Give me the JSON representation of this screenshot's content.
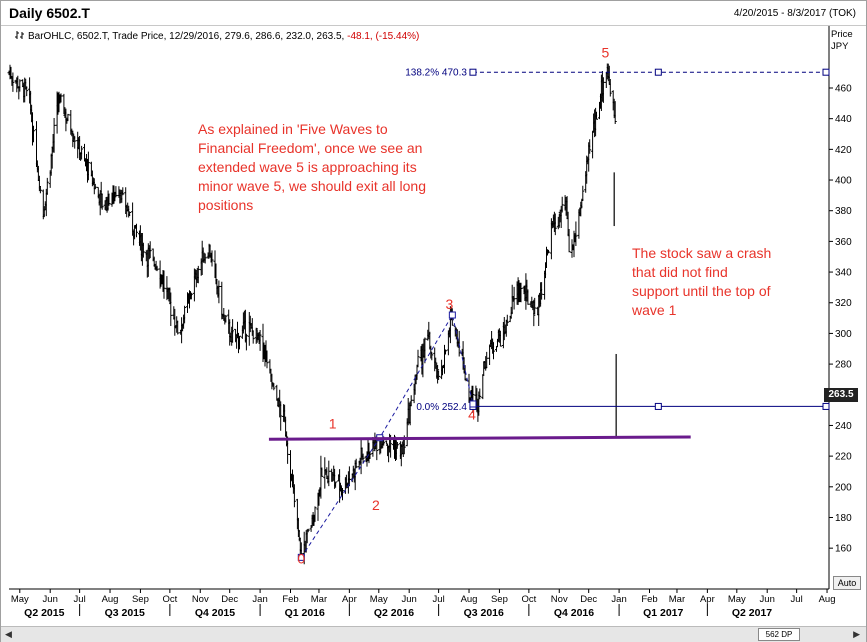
{
  "header": {
    "title": "Daily 6502.T",
    "range": "4/20/2015 - 8/3/2017 (TOK)"
  },
  "info": {
    "text": "BarOHLC, 6502.T, Trade Price, 12/29/2016, 279.6, 286.6, 232.0, 263.5, ",
    "change": "-48.1, (-15.44%)"
  },
  "price_axis": {
    "title": "Price",
    "currency": "JPY",
    "last_price": "263.5"
  },
  "controls": {
    "auto": "Auto",
    "dp": "562 DP"
  },
  "colors": {
    "bars": "#000000",
    "fib": "#00007f",
    "annotation": "#e8332a",
    "support": "#6a1b8c",
    "wave_path": "#1a1aa0"
  },
  "chart_data": {
    "type": "bar",
    "subtype": "OHLC",
    "symbol": "6502.T",
    "ylim": [
      140,
      480
    ],
    "y_ticks": [
      160,
      180,
      200,
      220,
      240,
      260,
      280,
      300,
      320,
      340,
      360,
      380,
      400,
      420,
      440,
      460
    ],
    "month_ticks": [
      "May",
      "Jun",
      "Jul",
      "Aug",
      "Sep",
      "Oct",
      "Nov",
      "Dec",
      "Jan",
      "Feb",
      "Mar",
      "Apr",
      "May",
      "Jun",
      "Jul",
      "Aug",
      "Sep",
      "Oct",
      "Nov",
      "Dec",
      "Jan",
      "Feb",
      "Mar",
      "Apr",
      "May",
      "Jun",
      "Jul",
      "Aug"
    ],
    "quarter_ticks": [
      "Q2 2015",
      "Q3 2015",
      "Q4 2015",
      "Q1 2016",
      "Q2 2016",
      "Q3 2016",
      "Q4 2016",
      "Q1 2017",
      "Q2 2017"
    ],
    "price_path": [
      [
        "2015-04-20",
        470
      ],
      [
        "2015-05-10",
        455
      ],
      [
        "2015-05-25",
        378
      ],
      [
        "2015-06-10",
        453
      ],
      [
        "2015-07-01",
        420
      ],
      [
        "2015-07-25",
        382
      ],
      [
        "2015-08-10",
        395
      ],
      [
        "2015-09-01",
        358
      ],
      [
        "2015-09-20",
        342
      ],
      [
        "2015-10-10",
        300
      ],
      [
        "2015-10-31",
        345
      ],
      [
        "2015-11-10",
        355
      ],
      [
        "2015-11-25",
        308
      ],
      [
        "2015-12-05",
        295
      ],
      [
        "2015-12-20",
        305
      ],
      [
        "2016-01-05",
        290
      ],
      [
        "2016-01-15",
        262
      ],
      [
        "2016-01-25",
        245
      ],
      [
        "2016-02-05",
        190
      ],
      [
        "2016-02-12",
        155
      ],
      [
        "2016-02-25",
        182
      ],
      [
        "2016-03-05",
        210
      ],
      [
        "2016-03-25",
        200
      ],
      [
        "2016-04-15",
        220
      ],
      [
        "2016-05-05",
        232
      ],
      [
        "2016-05-25",
        222
      ],
      [
        "2016-06-10",
        280
      ],
      [
        "2016-06-20",
        296
      ],
      [
        "2016-07-01",
        268
      ],
      [
        "2016-07-15",
        310
      ],
      [
        "2016-07-25",
        285
      ],
      [
        "2016-08-01",
        258
      ],
      [
        "2016-08-10",
        256
      ],
      [
        "2016-08-20",
        290
      ],
      [
        "2016-09-05",
        300
      ],
      [
        "2016-09-20",
        330
      ],
      [
        "2016-10-10",
        315
      ],
      [
        "2016-10-25",
        370
      ],
      [
        "2016-11-08",
        382
      ],
      [
        "2016-11-12",
        345
      ],
      [
        "2016-11-25",
        392
      ],
      [
        "2016-12-05",
        430
      ],
      [
        "2016-12-15",
        462
      ],
      [
        "2016-12-20",
        473
      ],
      [
        "2016-12-25",
        450
      ],
      [
        "2016-12-28",
        440
      ]
    ],
    "last_bar": {
      "date": "12/29/2016",
      "open": 279.6,
      "high": 286.6,
      "low": 232.0,
      "close": 263.5
    },
    "crash_bars": [
      {
        "date": "2016-12-27",
        "high": 405,
        "low": 370
      },
      {
        "date": "2016-12-29",
        "high": 286.6,
        "low": 232
      }
    ],
    "wave_labels": [
      {
        "text": "0",
        "date": "2016-02-12",
        "price": 150
      },
      {
        "text": "1",
        "date": "2016-03-15",
        "price": 238
      },
      {
        "text": "2",
        "date": "2016-04-28",
        "price": 185
      },
      {
        "text": "3",
        "date": "2016-07-12",
        "price": 316
      },
      {
        "text": "4",
        "date": "2016-08-04",
        "price": 244
      },
      {
        "text": "5",
        "date": "2016-12-18",
        "price": 480
      }
    ],
    "wave_path": [
      [
        "2016-02-12",
        154
      ],
      [
        "2016-05-02",
        232
      ],
      [
        "2016-07-15",
        312
      ],
      [
        "2016-08-05",
        254
      ]
    ],
    "fib_levels": [
      {
        "label_pct": "138.2%",
        "label_val": "470.3",
        "price": 470.3,
        "start": "2016-08-05"
      },
      {
        "label_pct": "0.0%",
        "label_val": "252.4",
        "price": 252.4,
        "start": "2016-08-05"
      }
    ],
    "support_line": {
      "start": "2016-01-10",
      "end": "2017-03-15",
      "price_start": 231,
      "price_end": 232.5
    },
    "annotations": [
      {
        "lines": [
          "As explained in 'Five Waves to",
          "Financial Freedom', once we see an",
          "extended wave 5 is approaching its",
          "minor wave 5, we should exit all long",
          "positions"
        ]
      },
      {
        "lines": [
          "The stock saw a crash",
          "that did not find",
          "support until the top of",
          "wave 1"
        ]
      }
    ]
  }
}
